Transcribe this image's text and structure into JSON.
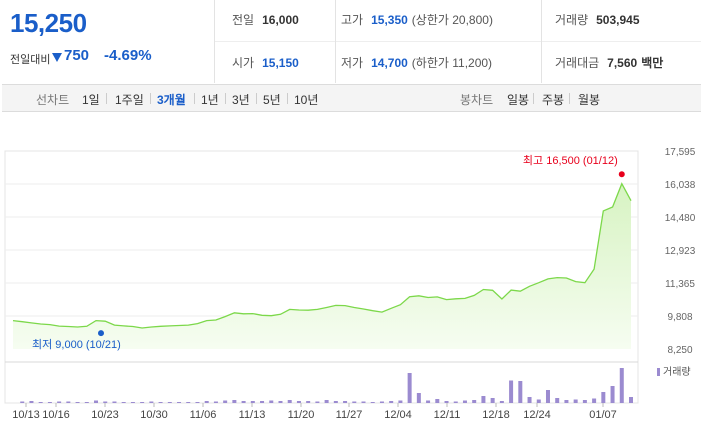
{
  "quote": {
    "price": "15,250",
    "change_label": "전일대비",
    "change_value": "750",
    "change_pct": "-4.69%",
    "stats": {
      "prev_close": {
        "label": "전일",
        "value": "16,000"
      },
      "high": {
        "label": "고가",
        "value": "15,350",
        "sub": "(상한가 20,800)"
      },
      "volume": {
        "label": "거래량",
        "value": "503,945"
      },
      "open": {
        "label": "시가",
        "value": "15,150"
      },
      "low": {
        "label": "저가",
        "value": "14,700",
        "sub": "(하한가 11,200)"
      },
      "amount": {
        "label": "거래대금",
        "value": "7,560",
        "unit": "백만"
      }
    }
  },
  "periods": {
    "line_label": "선차트",
    "line_items": [
      "1일",
      "1주일",
      "3개월",
      "1년",
      "3년",
      "5년",
      "10년"
    ],
    "selected": "3개월",
    "candle_label": "봉차트",
    "candle_items": [
      "일봉",
      "주봉",
      "월봉"
    ]
  },
  "colors": {
    "price_blue": "#1a5ec9",
    "line_green": "#7cd84a",
    "fill_green": "#e6f8d8",
    "volume_purple": "#9b8bd0",
    "high_red": "#e8001c"
  },
  "chart_data": {
    "type": "area",
    "y_ticks": [
      "17,595",
      "16,038",
      "14,480",
      "12,923",
      "11,365",
      "9,808",
      "8,250"
    ],
    "ylim": [
      8250,
      17595
    ],
    "x_ticks": [
      "10/13",
      "10/16",
      "10/23",
      "10/30",
      "11/06",
      "11/13",
      "11/20",
      "11/27",
      "12/04",
      "12/11",
      "12/18",
      "12/24",
      "01/07"
    ],
    "annotations": {
      "high": {
        "text": "최고 16,500 (01/12)",
        "value": 16500
      },
      "low": {
        "text": "최저 9,000 (10/21)",
        "value": 9000
      }
    },
    "volume_legend": "거래량",
    "series": [
      {
        "values": [
          9590,
          9540,
          9480,
          9430,
          9400,
          9330,
          9310,
          9290,
          9320,
          9590,
          9560,
          9380,
          9340,
          9310,
          9240,
          9290,
          9320,
          9340,
          9360,
          9380,
          9450,
          9590,
          9620,
          9780,
          9960,
          9910,
          9920,
          9840,
          9820,
          9890,
          10120,
          10090,
          10080,
          10120,
          10210,
          10310,
          10300,
          10210,
          10140,
          10060,
          9990,
          10170,
          10340,
          10720,
          10760,
          10680,
          10710,
          10580,
          10620,
          10640,
          10780,
          11060,
          11020,
          10610,
          11030,
          10980,
          11210,
          11380,
          11560,
          11620,
          11600,
          11430,
          11380,
          12020,
          14770,
          14950,
          16050,
          15250
        ]
      },
      {
        "values": [
          0,
          3,
          4,
          2,
          2,
          3,
          3,
          2,
          2,
          5,
          3,
          3,
          2,
          2,
          2,
          3,
          2,
          2,
          2,
          2,
          2,
          4,
          3,
          5,
          6,
          4,
          4,
          4,
          5,
          4,
          6,
          4,
          4,
          3,
          6,
          4,
          4,
          3,
          3,
          2,
          3,
          4,
          5,
          60,
          20,
          5,
          8,
          4,
          3,
          5,
          6,
          14,
          10,
          4,
          45,
          44,
          12,
          7,
          26,
          10,
          6,
          7,
          6,
          9,
          22,
          34,
          70,
          12
        ]
      }
    ]
  }
}
